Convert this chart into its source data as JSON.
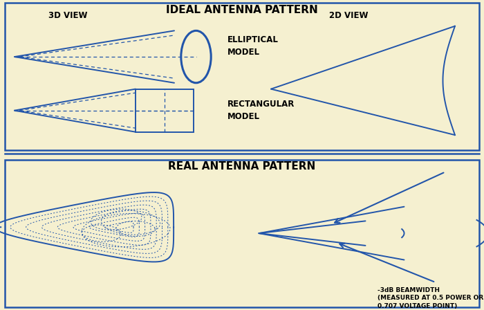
{
  "bg_color": "#f5f0d0",
  "line_color": "#2255aa",
  "border_color": "#2255aa",
  "title_top": "IDEAL ANTENNA PATTERN",
  "title_bottom": "REAL ANTENNA PATTERN",
  "label_3d_view": "3D VIEW",
  "label_2d_view": "2D VIEW",
  "label_elliptical": "ELLIPTICAL\nMODEL",
  "label_rectangular": "RECTANGULAR\nMODEL",
  "label_3db": "-3dB BEAMWIDTH\n(MEASURED AT 0.5 POWER OR\n0.707 VOLTAGE POINT)",
  "font_title_size": 11,
  "font_label_size": 8.5
}
